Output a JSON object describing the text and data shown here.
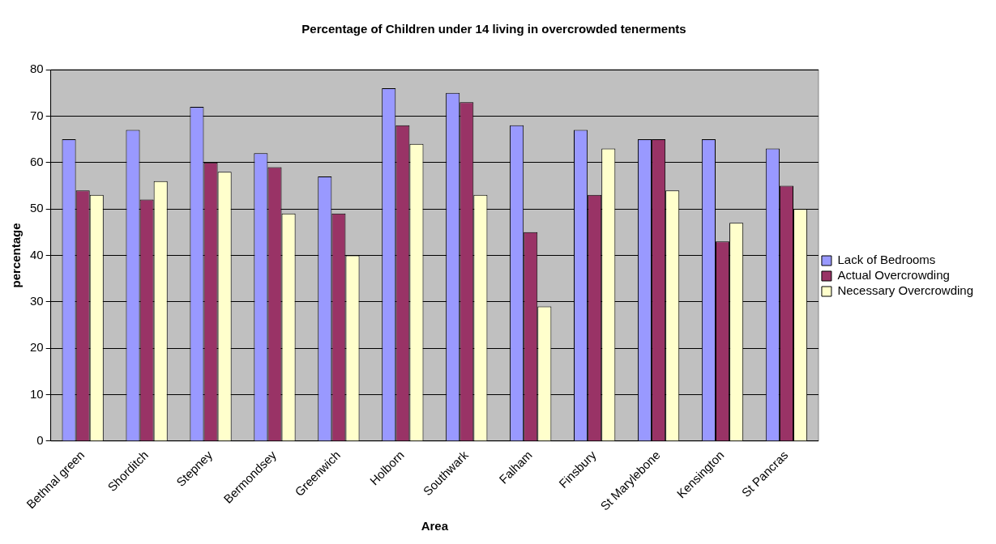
{
  "chart_data": {
    "type": "bar",
    "title": "Percentage of Children under 14 living in overcrowded tenerments",
    "xlabel": "Area",
    "ylabel": "percentage",
    "categories": [
      "Bethnal green",
      "Shorditch",
      "Stepney",
      "Bermondsey",
      "Greenwich",
      "Holborn",
      "Southwark",
      "Falham",
      "Finsbury",
      "St Marylebone",
      "Kensington",
      "St Pancras"
    ],
    "series": [
      {
        "name": "Lack of Bedrooms",
        "color": "#9999ff",
        "values": [
          65,
          67,
          72,
          62,
          57,
          76,
          75,
          68,
          67,
          65,
          65,
          63
        ]
      },
      {
        "name": "Actual Overcrowding",
        "color": "#993366",
        "values": [
          54,
          52,
          60,
          59,
          49,
          68,
          73,
          45,
          53,
          65,
          43,
          55
        ]
      },
      {
        "name": "Necessary Overcrowding",
        "color": "#ffffcc",
        "values": [
          53,
          56,
          58,
          49,
          40,
          64,
          53,
          29,
          63,
          54,
          47,
          50
        ]
      }
    ],
    "ylim": [
      0,
      80
    ],
    "yticks": [
      0,
      10,
      20,
      30,
      40,
      50,
      60,
      70,
      80
    ],
    "grid": "y",
    "legend": "right"
  }
}
